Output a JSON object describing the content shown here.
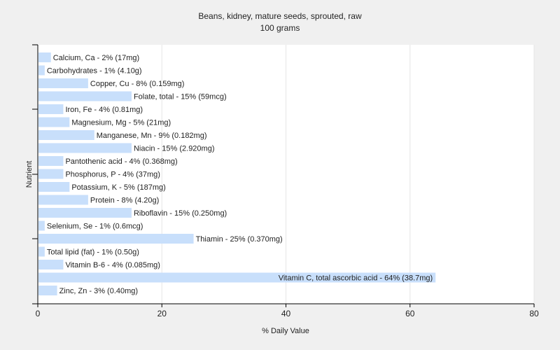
{
  "chart_data": {
    "type": "bar",
    "orientation": "horizontal",
    "title": "Beans, kidney, mature seeds, sprouted, raw",
    "subtitle": "100 grams",
    "xlabel": "% Daily Value",
    "ylabel": "Nutrient",
    "xlim": [
      0,
      80
    ],
    "xticks": [
      "0",
      "20",
      "40",
      "60",
      "80"
    ],
    "grid": "vertical",
    "bar_color": "#c8dffb",
    "categories": [
      "Calcium, Ca",
      "Carbohydrates",
      "Copper, Cu",
      "Folate, total",
      "Iron, Fe",
      "Magnesium, Mg",
      "Manganese, Mn",
      "Niacin",
      "Pantothenic acid",
      "Phosphorus, P",
      "Potassium, K",
      "Protein",
      "Riboflavin",
      "Selenium, Se",
      "Thiamin",
      "Total lipid (fat)",
      "Vitamin B-6",
      "Vitamin C, total ascorbic acid",
      "Zinc, Zn"
    ],
    "values": [
      2,
      1,
      8,
      15,
      4,
      5,
      9,
      15,
      4,
      4,
      5,
      8,
      15,
      1,
      25,
      1,
      4,
      64,
      3
    ],
    "labels": [
      "Calcium, Ca - 2% (17mg)",
      "Carbohydrates - 1% (4.10g)",
      "Copper, Cu - 8% (0.159mg)",
      "Folate, total - 15% (59mcg)",
      "Iron, Fe - 4% (0.81mg)",
      "Magnesium, Mg - 5% (21mg)",
      "Manganese, Mn - 9% (0.182mg)",
      "Niacin - 15% (2.920mg)",
      "Pantothenic acid - 4% (0.368mg)",
      "Phosphorus, P - 4% (37mg)",
      "Potassium, K - 5% (187mg)",
      "Protein - 8% (4.20g)",
      "Riboflavin - 15% (0.250mg)",
      "Selenium, Se - 1% (0.6mcg)",
      "Thiamin - 25% (0.370mg)",
      "Total lipid (fat) - 1% (0.50g)",
      "Vitamin B-6 - 4% (0.085mg)",
      "Vitamin C, total ascorbic acid - 64% (38.7mg)",
      "Zinc, Zn - 3% (0.40mg)"
    ]
  }
}
